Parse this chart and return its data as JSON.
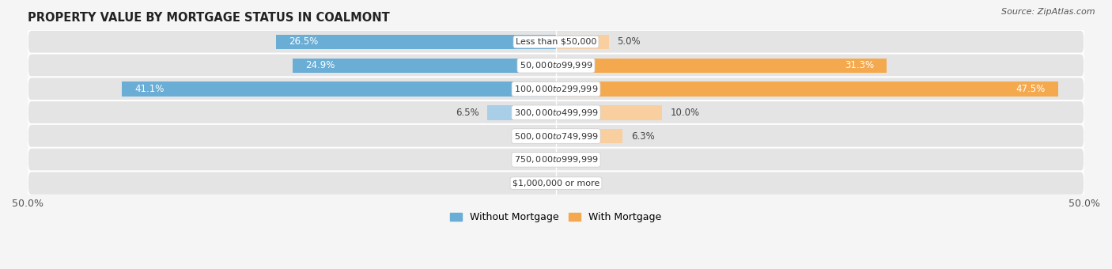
{
  "title": "PROPERTY VALUE BY MORTGAGE STATUS IN COALMONT",
  "source": "Source: ZipAtlas.com",
  "categories": [
    "Less than $50,000",
    "$50,000 to $99,999",
    "$100,000 to $299,999",
    "$300,000 to $499,999",
    "$500,000 to $749,999",
    "$750,000 to $999,999",
    "$1,000,000 or more"
  ],
  "without_mortgage": [
    26.5,
    24.9,
    41.1,
    6.5,
    1.1,
    0.0,
    0.0
  ],
  "with_mortgage": [
    5.0,
    31.3,
    47.5,
    10.0,
    6.3,
    0.0,
    0.0
  ],
  "color_without": "#6aadd5",
  "color_without_light": "#a8cee8",
  "color_with": "#f5a94e",
  "color_with_light": "#f9cfa0",
  "xlim": [
    -50,
    50
  ],
  "background_row_odd": "#e8e8e8",
  "background_row_even": "#efefef",
  "background_fig": "#f5f5f5",
  "bar_height": 0.62,
  "label_fontsize": 8.5,
  "title_fontsize": 10.5,
  "source_fontsize": 8,
  "cat_fontsize": 8,
  "inside_label_threshold": 12
}
